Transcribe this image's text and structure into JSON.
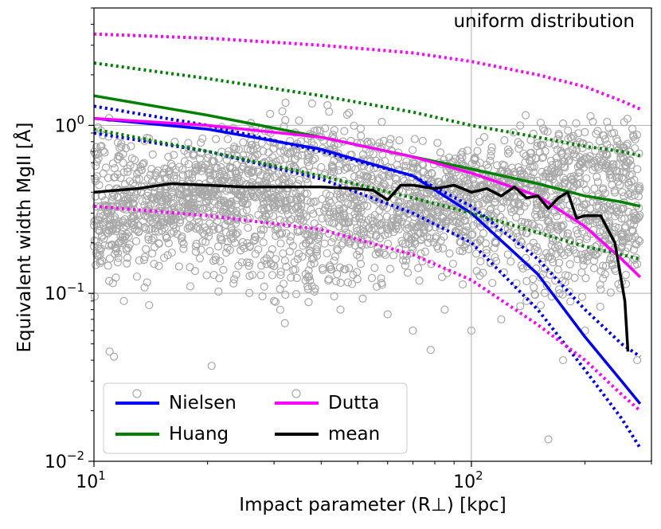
{
  "chart_data": {
    "type": "scatter",
    "annotation": "uniform distribution",
    "xlabel": "Impact parameter (R⊥) [kpc]",
    "ylabel": "Equivalent width MgII [Å]",
    "xscale": "log",
    "yscale": "log",
    "xlim": [
      10,
      300
    ],
    "ylim": [
      0.01,
      5
    ],
    "grid": true,
    "x_ticks": [
      {
        "value": 10,
        "base": "10",
        "exp": "1"
      },
      {
        "value": 100,
        "base": "10",
        "exp": "2"
      }
    ],
    "y_ticks": [
      {
        "value": 0.01,
        "base": "10",
        "exp": "−2"
      },
      {
        "value": 0.1,
        "base": "10",
        "exp": "−1"
      },
      {
        "value": 1,
        "base": "10",
        "exp": "0"
      }
    ],
    "legend": {
      "placement": "lower-left",
      "entries": [
        {
          "label": "Nielsen",
          "color": "#0000ff"
        },
        {
          "label": "Huang",
          "color": "#008000"
        },
        {
          "label": "Dutta",
          "color": "#ff00ff"
        },
        {
          "label": "mean",
          "color": "#000000"
        }
      ]
    },
    "colors": {
      "scatter": "#a8a8a8",
      "grid": "#b0b0b0"
    },
    "series": [
      {
        "name": "Nielsen",
        "color": "#0000ff",
        "style": "solid",
        "x": [
          10,
          20,
          40,
          70,
          100,
          150,
          200,
          250,
          280
        ],
        "y": [
          1.1,
          0.95,
          0.72,
          0.5,
          0.3,
          0.13,
          0.055,
          0.03,
          0.022
        ]
      },
      {
        "name": "Nielsen upper",
        "color": "#0000ff",
        "style": "dotted",
        "x": [
          10,
          20,
          40,
          70,
          100,
          150,
          200,
          250,
          280
        ],
        "y": [
          1.3,
          1.0,
          0.7,
          0.5,
          0.33,
          0.16,
          0.08,
          0.05,
          0.042
        ]
      },
      {
        "name": "Nielsen lower",
        "color": "#0000ff",
        "style": "dotted",
        "x": [
          10,
          20,
          40,
          70,
          100,
          150,
          200,
          250,
          280
        ],
        "y": [
          0.9,
          0.7,
          0.48,
          0.3,
          0.2,
          0.08,
          0.035,
          0.018,
          0.012
        ]
      },
      {
        "name": "Huang",
        "color": "#008000",
        "style": "solid",
        "x": [
          10,
          20,
          40,
          70,
          100,
          150,
          200,
          250,
          280
        ],
        "y": [
          1.5,
          1.15,
          0.85,
          0.65,
          0.55,
          0.45,
          0.38,
          0.35,
          0.33
        ]
      },
      {
        "name": "Huang upper",
        "color": "#008000",
        "style": "dotted",
        "x": [
          10,
          20,
          40,
          70,
          100,
          150,
          200,
          250,
          280
        ],
        "y": [
          2.35,
          1.9,
          1.5,
          1.2,
          1.0,
          0.85,
          0.75,
          0.7,
          0.66
        ]
      },
      {
        "name": "Huang lower",
        "color": "#008000",
        "style": "dotted",
        "x": [
          10,
          20,
          40,
          70,
          100,
          150,
          200,
          250,
          280
        ],
        "y": [
          0.95,
          0.7,
          0.5,
          0.37,
          0.3,
          0.23,
          0.19,
          0.17,
          0.16
        ]
      },
      {
        "name": "Dutta",
        "color": "#ff00ff",
        "style": "solid",
        "x": [
          10,
          20,
          40,
          70,
          100,
          150,
          200,
          250,
          280
        ],
        "y": [
          1.1,
          1.0,
          0.85,
          0.65,
          0.52,
          0.38,
          0.25,
          0.16,
          0.125
        ]
      },
      {
        "name": "Dutta upper",
        "color": "#ff00ff",
        "style": "dotted",
        "x": [
          10,
          20,
          40,
          70,
          100,
          150,
          200,
          250,
          280
        ],
        "y": [
          3.5,
          3.3,
          3.0,
          2.7,
          2.4,
          2.0,
          1.7,
          1.4,
          1.25
        ]
      },
      {
        "name": "Dutta lower",
        "color": "#ff00ff",
        "style": "dotted",
        "x": [
          10,
          20,
          40,
          70,
          100,
          150,
          200,
          250,
          280
        ],
        "y": [
          0.33,
          0.29,
          0.24,
          0.17,
          0.12,
          0.065,
          0.04,
          0.025,
          0.02
        ]
      },
      {
        "name": "mean",
        "color": "#000000",
        "style": "solid",
        "x": [
          10,
          13,
          16,
          20,
          25,
          30,
          40,
          50,
          55,
          60,
          65,
          70,
          80,
          90,
          100,
          110,
          120,
          130,
          140,
          150,
          160,
          170,
          180,
          190,
          200,
          220,
          240,
          255,
          260
        ],
        "y": [
          0.4,
          0.42,
          0.45,
          0.44,
          0.43,
          0.43,
          0.43,
          0.42,
          0.41,
          0.36,
          0.44,
          0.44,
          0.42,
          0.44,
          0.4,
          0.42,
          0.38,
          0.43,
          0.37,
          0.38,
          0.32,
          0.37,
          0.4,
          0.28,
          0.29,
          0.29,
          0.2,
          0.09,
          0.045
        ]
      }
    ],
    "scatter_band": {
      "description": "several thousand grey open-circle data points",
      "x_range": [
        10,
        280
      ],
      "bands": [
        {
          "x0": 10,
          "y0": 0.55,
          "x1": 280,
          "y1": 0.55,
          "spread": 0.12
        },
        {
          "x0": 10,
          "y0": 0.32,
          "x1": 280,
          "y1": 0.32,
          "spread": 0.1
        },
        {
          "x0": 10,
          "y0": 0.2,
          "x1": 280,
          "y1": 0.2,
          "spread": 0.15
        }
      ],
      "outliers": [
        {
          "x": 11,
          "y": 0.045
        },
        {
          "x": 11.3,
          "y": 0.042
        },
        {
          "x": 20.5,
          "y": 0.037
        },
        {
          "x": 70,
          "y": 0.06
        },
        {
          "x": 78,
          "y": 0.046
        },
        {
          "x": 100,
          "y": 0.06
        },
        {
          "x": 160,
          "y": 0.0135
        },
        {
          "x": 175,
          "y": 0.04
        },
        {
          "x": 275,
          "y": 0.04
        },
        {
          "x": 12,
          "y": 0.09
        },
        {
          "x": 14,
          "y": 0.085
        },
        {
          "x": 18,
          "y": 0.11
        },
        {
          "x": 30,
          "y": 0.09
        },
        {
          "x": 45,
          "y": 0.08
        },
        {
          "x": 60,
          "y": 0.075
        },
        {
          "x": 85,
          "y": 0.08
        },
        {
          "x": 120,
          "y": 0.07
        },
        {
          "x": 140,
          "y": 0.09
        },
        {
          "x": 200,
          "y": 0.06
        }
      ]
    }
  }
}
